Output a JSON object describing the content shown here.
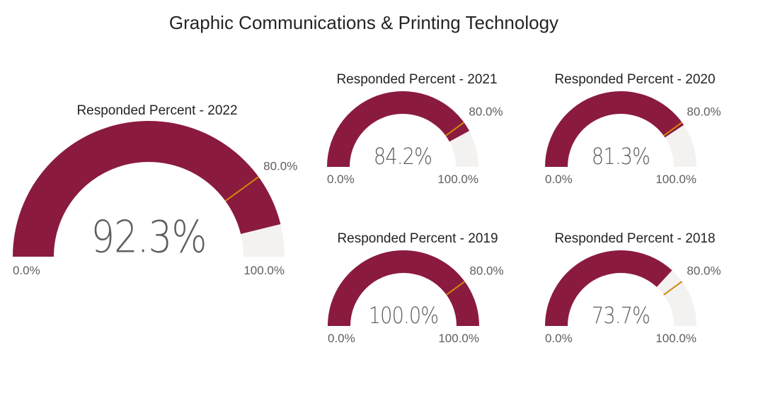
{
  "title": "Graphic Communications & Printing Technology",
  "colors": {
    "fill": "#8B1A3F",
    "track": "#F3F2F1",
    "target": "#D4860B",
    "value_text": "#605E5C",
    "label_text": "#605E5C",
    "title_text": "#252423"
  },
  "chart_data": [
    {
      "type": "gauge",
      "title": "Responded Percent - 2022",
      "value": 92.3,
      "value_label": "92.3%",
      "min": 0,
      "max": 100,
      "min_label": "0.0%",
      "max_label": "100.0%",
      "target": 80,
      "target_label": "80.0%"
    },
    {
      "type": "gauge",
      "title": "Responded Percent - 2021",
      "value": 84.2,
      "value_label": "84.2%",
      "min": 0,
      "max": 100,
      "min_label": "0.0%",
      "max_label": "100.0%",
      "target": 80,
      "target_label": "80.0%"
    },
    {
      "type": "gauge",
      "title": "Responded Percent - 2020",
      "value": 81.3,
      "value_label": "81.3%",
      "min": 0,
      "max": 100,
      "min_label": "0.0%",
      "max_label": "100.0%",
      "target": 80,
      "target_label": "80.0%"
    },
    {
      "type": "gauge",
      "title": "Responded Percent - 2019",
      "value": 100.0,
      "value_label": "100.0%",
      "min": 0,
      "max": 100,
      "min_label": "0.0%",
      "max_label": "100.0%",
      "target": 80,
      "target_label": "80.0%"
    },
    {
      "type": "gauge",
      "title": "Responded Percent - 2018",
      "value": 73.7,
      "value_label": "73.7%",
      "min": 0,
      "max": 100,
      "min_label": "0.0%",
      "max_label": "100.0%",
      "target": 80,
      "target_label": "80.0%"
    }
  ]
}
